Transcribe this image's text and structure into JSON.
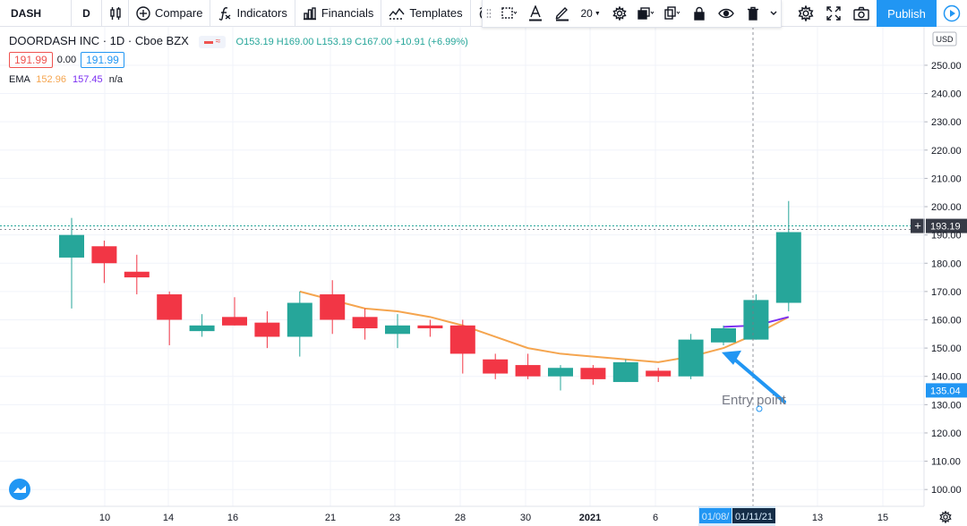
{
  "toolbar": {
    "symbol": "DASH",
    "interval": "D",
    "compare": "Compare",
    "indicators": "Indicators",
    "financials": "Financials",
    "templates": "Templates",
    "alert_partial": "A",
    "font_size": "20",
    "publish": "Publish"
  },
  "legend": {
    "title": "DOORDASH INC · 1D · Cboe BZX",
    "ohlc": "O153.19 H169.00 L153.19 C167.00 +10.91 (+6.99%)",
    "sell_price": "191.99",
    "spread": "0.00",
    "buy_price": "191.99",
    "ema_label": "EMA",
    "ema_value_1": "152.96",
    "ema_value_2": "157.45",
    "ema_value_3": "n/a"
  },
  "colors": {
    "up": "#26a69a",
    "down": "#f23645",
    "ema": "#f5a54f",
    "ema2": "#7b2ff2",
    "accent": "#2196f3"
  },
  "chart_data": {
    "type": "candlestick",
    "currency": "USD",
    "ylim": [
      95,
      262
    ],
    "y_ticks": [
      100,
      110,
      120,
      130,
      140,
      150,
      160,
      170,
      180,
      190,
      200,
      210,
      220,
      230,
      240,
      250
    ],
    "y_tick_labels": [
      "100.00",
      "110.00",
      "120.00",
      "130.00",
      "140.00",
      "150.00",
      "160.00",
      "170.00",
      "180.00",
      "190.00",
      "200.00",
      "210.00",
      "220.00",
      "230.00",
      "240.00",
      "250.00"
    ],
    "x_tick_labels": [
      "10",
      "14",
      "16",
      "21",
      "23",
      "28",
      "30",
      "2021",
      "6",
      "01/08/",
      "01/11/21",
      "13",
      "15"
    ],
    "current_price_label": "193.19",
    "current_price": 193.19,
    "marker_label": "135.04",
    "marker_price": 135.04,
    "candles": [
      {
        "o": 182,
        "h": 196,
        "l": 164,
        "c": 190
      },
      {
        "o": 186,
        "h": 188,
        "l": 173,
        "c": 180
      },
      {
        "o": 177,
        "h": 183,
        "l": 169,
        "c": 175
      },
      {
        "o": 169,
        "h": 170,
        "l": 151,
        "c": 160
      },
      {
        "o": 156,
        "h": 162,
        "l": 154,
        "c": 158
      },
      {
        "o": 161,
        "h": 168,
        "l": 158,
        "c": 158
      },
      {
        "o": 159,
        "h": 163,
        "l": 150,
        "c": 154
      },
      {
        "o": 154,
        "h": 170,
        "l": 147,
        "c": 166
      },
      {
        "o": 169,
        "h": 174,
        "l": 155,
        "c": 160
      },
      {
        "o": 161,
        "h": 164,
        "l": 153,
        "c": 157
      },
      {
        "o": 155,
        "h": 162,
        "l": 150,
        "c": 158
      },
      {
        "o": 158,
        "h": 160,
        "l": 154,
        "c": 157
      },
      {
        "o": 158,
        "h": 160,
        "l": 141,
        "c": 148
      },
      {
        "o": 146,
        "h": 148,
        "l": 139,
        "c": 141
      },
      {
        "o": 144,
        "h": 148,
        "l": 139,
        "c": 140
      },
      {
        "o": 140,
        "h": 144,
        "l": 135,
        "c": 143
      },
      {
        "o": 143,
        "h": 144,
        "l": 137,
        "c": 139
      },
      {
        "o": 138,
        "h": 146,
        "l": 138,
        "c": 145
      },
      {
        "o": 142,
        "h": 143,
        "l": 138,
        "c": 140
      },
      {
        "o": 140,
        "h": 155,
        "l": 139,
        "c": 153
      },
      {
        "o": 152,
        "h": 158,
        "l": 151,
        "c": 157
      },
      {
        "o": 153,
        "h": 169,
        "l": 153,
        "c": 167
      },
      {
        "o": 166,
        "h": 202,
        "l": 163,
        "c": 191
      }
    ],
    "ema": [
      170,
      167,
      164,
      163,
      161,
      158,
      154,
      150,
      148,
      147,
      146,
      145,
      147,
      150,
      155,
      161
    ],
    "ema_start_index": 7,
    "ema2": [
      157.5,
      158,
      161
    ],
    "ema2_start_index": 20,
    "annotation": "Entry point"
  }
}
